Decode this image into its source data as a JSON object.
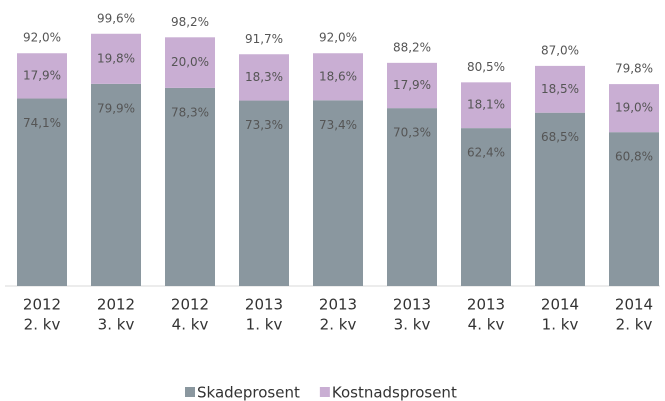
{
  "chart_data": {
    "type": "stacked_bar",
    "categories": [
      [
        "2012",
        "2. kv"
      ],
      [
        "2012",
        "3. kv"
      ],
      [
        "2012",
        "4. kv"
      ],
      [
        "2013",
        "1. kv"
      ],
      [
        "2013",
        "2. kv"
      ],
      [
        "2013",
        "3. kv"
      ],
      [
        "2013",
        "4. kv"
      ],
      [
        "2014",
        "1. kv"
      ],
      [
        "2014",
        "2. kv"
      ]
    ],
    "series": [
      {
        "name": "Skadeprosent",
        "color": "#8a979f",
        "values": [
          74.1,
          79.9,
          78.3,
          73.3,
          73.4,
          70.3,
          62.4,
          68.5,
          60.8
        ],
        "value_labels": [
          "74,1%",
          "79,9%",
          "78,3%",
          "73,3%",
          "73,4%",
          "70,3%",
          "62,4%",
          "68,5%",
          "60,8%"
        ]
      },
      {
        "name": "Kostnadsprosent",
        "color": "#c9aed3",
        "values": [
          17.9,
          19.8,
          20.0,
          18.3,
          18.6,
          17.9,
          18.1,
          18.5,
          19.0
        ],
        "value_labels": [
          "17,9%",
          "19,8%",
          "20,0%",
          "18,3%",
          "18,6%",
          "17,9%",
          "18,1%",
          "18,5%",
          "19,0%"
        ]
      }
    ],
    "totals": [
      92.0,
      99.6,
      98.2,
      91.7,
      92.0,
      88.2,
      80.5,
      87.0,
      79.8
    ],
    "total_labels": [
      "92,0%",
      "99,6%",
      "98,2%",
      "91,7%",
      "92,0%",
      "88,2%",
      "80,5%",
      "87,0%",
      "79,8%"
    ],
    "ylim": [
      0,
      100
    ],
    "legend": "bottom"
  }
}
